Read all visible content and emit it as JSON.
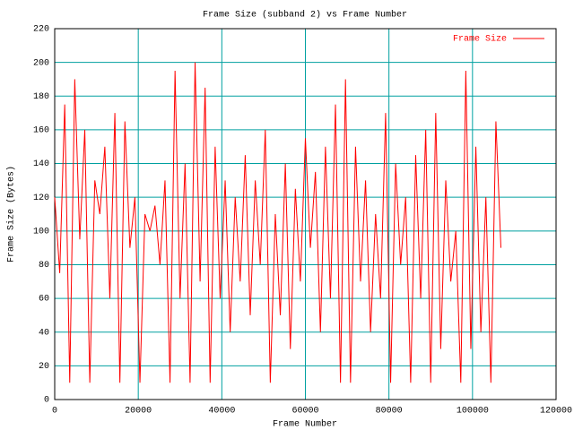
{
  "chart_data": {
    "type": "line",
    "title": "Frame Size (subband 2) vs Frame Number",
    "x_label": "Frame Number",
    "y_label": "Frame Size (Bytes)",
    "x": [
      0,
      1200,
      2400,
      3600,
      4800,
      6000,
      7200,
      8400,
      9600,
      10800,
      12000,
      13200,
      14400,
      15600,
      16800,
      18000,
      19200,
      20400,
      21600,
      22800,
      24000,
      25200,
      26400,
      27600,
      28800,
      30000,
      31200,
      32400,
      33600,
      34800,
      36000,
      37200,
      38400,
      39600,
      40800,
      42000,
      43200,
      44400,
      45600,
      46800,
      48000,
      49200,
      50400,
      51600,
      52800,
      54000,
      55200,
      56400,
      57600,
      58800,
      60000,
      61200,
      62400,
      63600,
      64800,
      66000,
      67200,
      68400,
      69600,
      70800,
      72000,
      73200,
      74400,
      75600,
      76800,
      78000,
      79200,
      80400,
      81600,
      82800,
      84000,
      85200,
      86400,
      87600,
      88800,
      90000,
      91200,
      92400,
      93600,
      94800,
      96000,
      97200,
      98400,
      99600,
      100800,
      102000,
      103200,
      104400,
      105600,
      106800
    ],
    "series": [
      {
        "name": "Frame Size",
        "color": "#ff0000",
        "values": [
          120,
          75,
          175,
          10,
          190,
          95,
          160,
          10,
          130,
          110,
          150,
          60,
          170,
          10,
          165,
          90,
          120,
          10,
          110,
          100,
          115,
          80,
          130,
          10,
          195,
          60,
          140,
          10,
          200,
          70,
          185,
          10,
          150,
          60,
          130,
          40,
          120,
          70,
          145,
          50,
          130,
          80,
          160,
          10,
          110,
          50,
          140,
          30,
          125,
          70,
          155,
          90,
          135,
          40,
          150,
          60,
          175,
          10,
          190,
          10,
          150,
          70,
          130,
          40,
          110,
          60,
          170,
          10,
          140,
          80,
          120,
          10,
          145,
          60,
          160,
          10,
          170,
          30,
          130,
          70,
          100,
          10,
          195,
          30,
          150,
          40,
          120,
          10,
          165,
          90
        ]
      }
    ],
    "xlim": [
      0,
      120000
    ],
    "xticks": [
      0,
      20000,
      40000,
      60000,
      80000,
      100000,
      120000
    ],
    "ylim": [
      0,
      220
    ],
    "yticks": [
      0,
      20,
      40,
      60,
      80,
      100,
      120,
      140,
      160,
      180,
      200,
      220
    ],
    "grid": true,
    "grid_color": "#00a0a0",
    "legend": "top-right"
  }
}
